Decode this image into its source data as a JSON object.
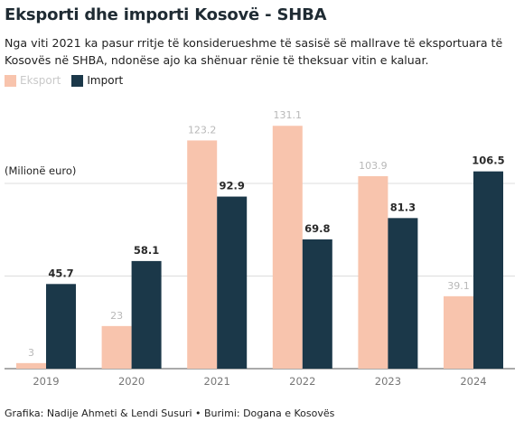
{
  "title": "Eksporti dhe importi Kosovë - SHBA",
  "subtitle": "Nga viti 2021 ka pasur rritje të konsiderueshme të sasisë së mallrave të eksportuara të Kosovës në SHBA, ndonëse ajo ka shënuar rënie të theksuar vitin e kaluar.",
  "footer": "Grafika: Nadije Ahmeti & Lendi Susuri • Burimi: Dogana e Kosovës",
  "colors": {
    "export": "#f8c4ad",
    "import": "#1b3849",
    "export_label": "#b8b8b8",
    "import_label": "#2a2a2a"
  },
  "chart_data": {
    "type": "bar",
    "title": "Eksporti dhe importi Kosovë - SHBA",
    "ylabel": "(Milionë euro)",
    "xlabel": "",
    "categories": [
      "2019",
      "2020",
      "2021",
      "2022",
      "2023",
      "2024"
    ],
    "series": [
      {
        "name": "Eksport",
        "values": [
          3,
          23,
          123.2,
          131.1,
          103.9,
          39.1
        ]
      },
      {
        "name": "Import",
        "values": [
          45.7,
          58.1,
          92.9,
          69.8,
          81.3,
          106.5
        ]
      }
    ],
    "ylim": [
      0,
      140
    ],
    "grid": true,
    "legend": "top-left"
  }
}
